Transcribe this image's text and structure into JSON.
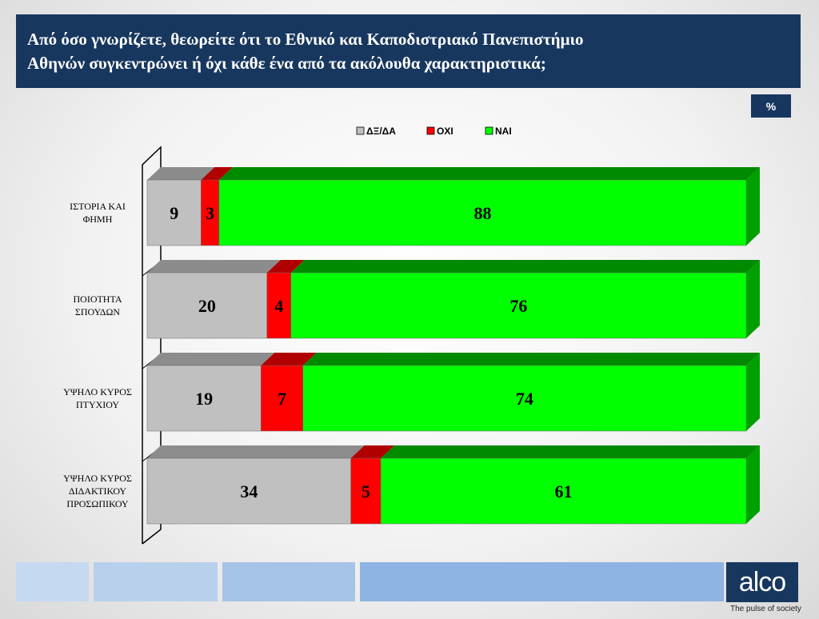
{
  "header": {
    "title_line1": "Από όσο γνωρίζετε, θεωρείτε ότι το Εθνικό και Καποδιστριακό Πανεπιστήμιο",
    "title_line2": "Αθηνών συγκεντρώνει ή όχι κάθε ένα από τα ακόλουθα χαρακτηριστικά;",
    "unit_badge": "%"
  },
  "chart_data": {
    "type": "bar",
    "orientation": "horizontal",
    "stacked": true,
    "three_d": true,
    "categories": [
      [
        "ΙΣΤΟΡΙΑ ΚΑΙ",
        "ΦΗΜΗ"
      ],
      [
        "ΠΟΙΟΤΗΤΑ",
        "ΣΠΟΥΔΩΝ"
      ],
      [
        "ΥΨΗΛΟ ΚΥΡΟΣ",
        "ΠΤΥΧΙΟΥ"
      ],
      [
        "ΥΨΗΛΟ ΚΥΡΟΣ",
        "ΔΙΔΑΚΤΙΚΟΥ",
        "ΠΡΟΣΩΠΙΚΟΥ"
      ]
    ],
    "series": [
      {
        "name": "ΔΞ/ΔΑ",
        "color": "#c0c0c0",
        "top_color": "#8c8c8c",
        "values": [
          9,
          20,
          19,
          34
        ]
      },
      {
        "name": "ΟΧΙ",
        "color": "#ff0000",
        "top_color": "#b00000",
        "values": [
          3,
          4,
          7,
          5
        ]
      },
      {
        "name": "ΝΑΙ",
        "color": "#00ff00",
        "top_color": "#008a00",
        "side_color": "#00a000",
        "values": [
          88,
          76,
          74,
          61
        ]
      }
    ],
    "xlim": [
      0,
      100
    ],
    "legend_position": "top-center",
    "grid": false
  },
  "footer": {
    "strip_colors": [
      "#c5d9f1",
      "#b8d0ec",
      "#a5c3e6",
      "#8db4e2"
    ],
    "logo_text": "alco",
    "tagline": "The pulse of society"
  }
}
